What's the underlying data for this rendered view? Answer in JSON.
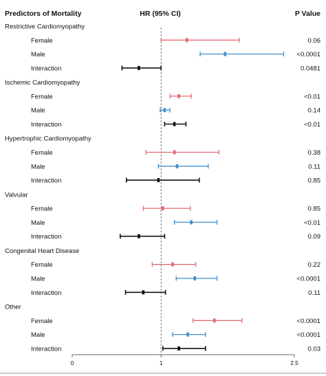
{
  "header": {
    "predictors": "Predictors of Mortality",
    "hr": "HR (95% CI)",
    "pvalue": "P Value"
  },
  "colors": {
    "female": "#e06c75",
    "male": "#3e8fd0",
    "interaction": "#111111"
  },
  "chart_data": {
    "type": "forest",
    "title": "",
    "xlabel": "",
    "ylabel": "",
    "xlim": [
      0,
      2.5
    ],
    "reference_line": 1,
    "x_ticks": [
      "0",
      "1",
      "2.5"
    ],
    "groups": [
      {
        "name": "Restrictive Cardiomyopathy",
        "rows": [
          {
            "label": "Female",
            "kind": "female",
            "hr": 1.29,
            "lo": 1.0,
            "hi": 1.88,
            "p": "0.06"
          },
          {
            "label": "Male",
            "kind": "male",
            "hr": 1.72,
            "lo": 1.44,
            "hi": 2.38,
            "p": "<0.0001"
          },
          {
            "label": "Interaction",
            "kind": "interaction",
            "hr": 0.75,
            "lo": 0.56,
            "hi": 1.0,
            "p": "0.0481"
          }
        ]
      },
      {
        "name": "Ischemic Cardiomyopathy",
        "rows": [
          {
            "label": "Female",
            "kind": "female",
            "hr": 1.2,
            "lo": 1.1,
            "hi": 1.34,
            "p": "<0.01"
          },
          {
            "label": "Male",
            "kind": "male",
            "hr": 1.04,
            "lo": 0.99,
            "hi": 1.1,
            "p": "0.14"
          },
          {
            "label": "Interaction",
            "kind": "interaction",
            "hr": 1.15,
            "lo": 1.04,
            "hi": 1.28,
            "p": "<0.01"
          }
        ]
      },
      {
        "name": "Hypertrophic Cardiomyopathy",
        "rows": [
          {
            "label": "Female",
            "kind": "female",
            "hr": 1.15,
            "lo": 0.83,
            "hi": 1.65,
            "p": "0.38"
          },
          {
            "label": "Male",
            "kind": "male",
            "hr": 1.18,
            "lo": 0.97,
            "hi": 1.53,
            "p": "0.11"
          },
          {
            "label": "Interaction",
            "kind": "interaction",
            "hr": 0.97,
            "lo": 0.61,
            "hi": 1.43,
            "p": "0.85"
          }
        ]
      },
      {
        "name": "Valvular",
        "rows": [
          {
            "label": "Female",
            "kind": "female",
            "hr": 1.02,
            "lo": 0.8,
            "hi": 1.33,
            "p": "0.85"
          },
          {
            "label": "Male",
            "kind": "male",
            "hr": 1.34,
            "lo": 1.15,
            "hi": 1.63,
            "p": "<0.01"
          },
          {
            "label": "Interaction",
            "kind": "interaction",
            "hr": 0.75,
            "lo": 0.54,
            "hi": 1.04,
            "p": "0.09"
          }
        ]
      },
      {
        "name": "Congenital Heart Disease",
        "rows": [
          {
            "label": "Female",
            "kind": "female",
            "hr": 1.13,
            "lo": 0.9,
            "hi": 1.39,
            "p": "0.22"
          },
          {
            "label": "Male",
            "kind": "male",
            "hr": 1.38,
            "lo": 1.17,
            "hi": 1.63,
            "p": "<0.0001"
          },
          {
            "label": "Interaction",
            "kind": "interaction",
            "hr": 0.8,
            "lo": 0.6,
            "hi": 1.05,
            "p": "0.11"
          }
        ]
      },
      {
        "name": "Other",
        "rows": [
          {
            "label": "Female",
            "kind": "female",
            "hr": 1.6,
            "lo": 1.36,
            "hi": 1.91,
            "p": "<0.0001"
          },
          {
            "label": "Male",
            "kind": "male",
            "hr": 1.3,
            "lo": 1.13,
            "hi": 1.5,
            "p": "<0.0001"
          },
          {
            "label": "Interaction",
            "kind": "interaction",
            "hr": 1.2,
            "lo": 1.02,
            "hi": 1.5,
            "p": "0.03"
          }
        ]
      }
    ]
  }
}
